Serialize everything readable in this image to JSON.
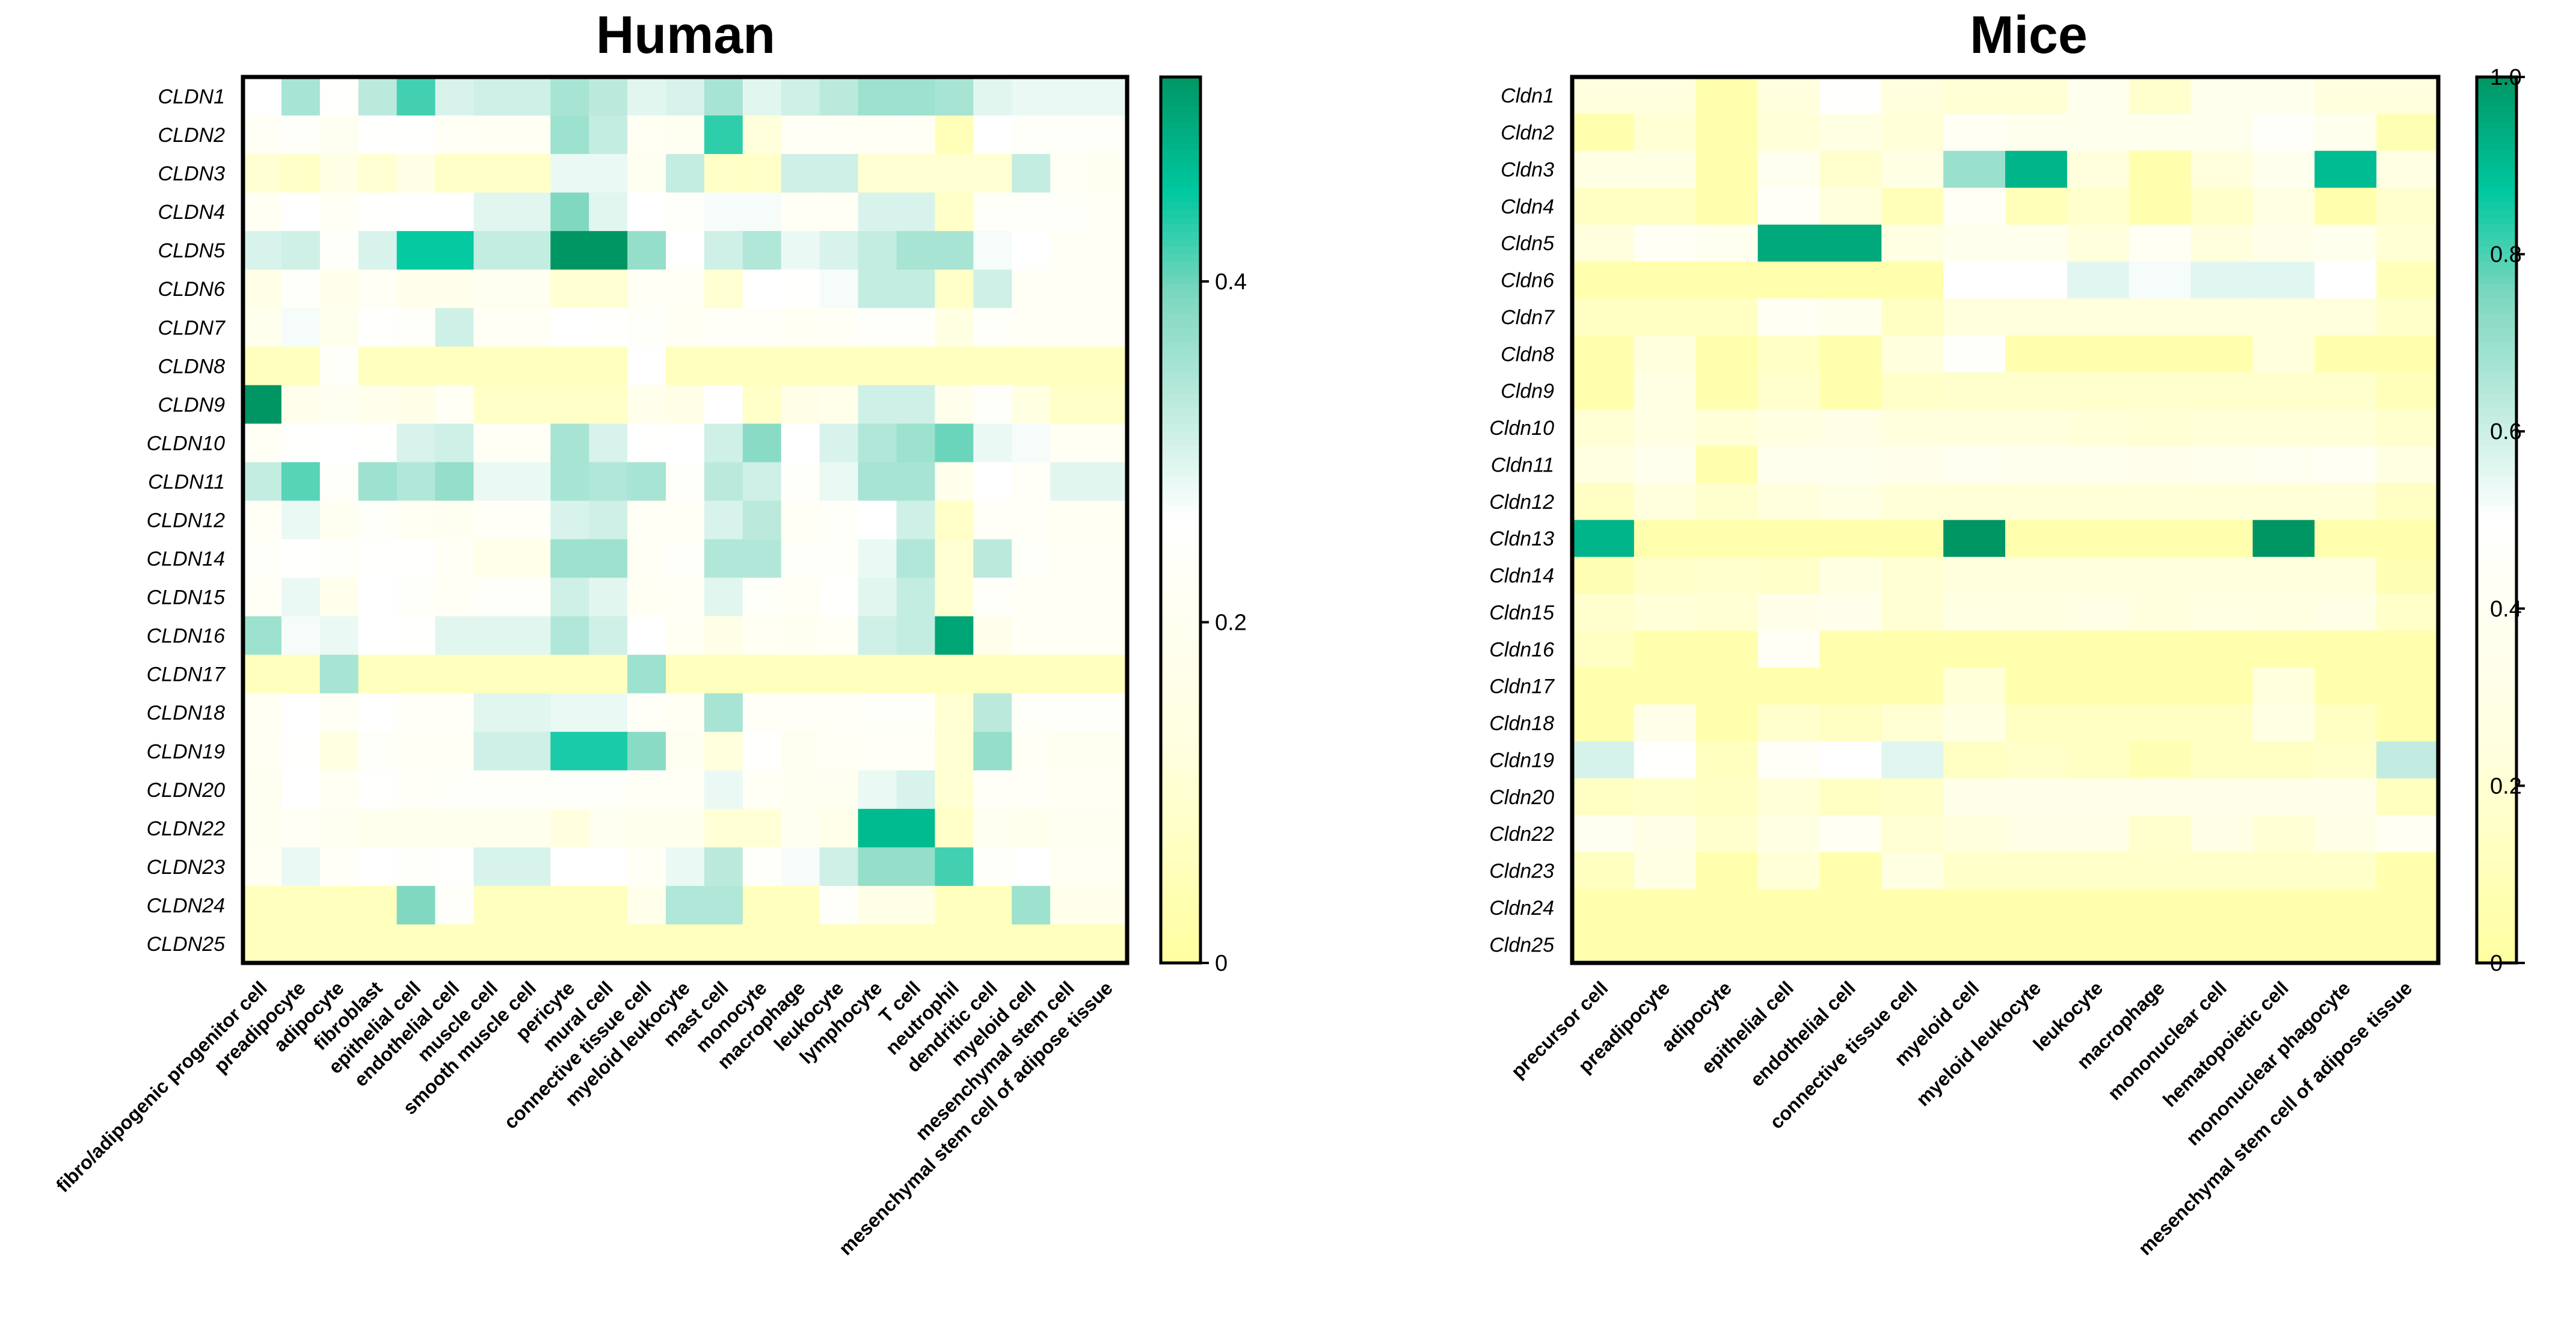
{
  "chart_data": [
    {
      "type": "heatmap",
      "title": "Human",
      "rows": [
        "CLDN1",
        "CLDN2",
        "CLDN3",
        "CLDN4",
        "CLDN5",
        "CLDN6",
        "CLDN7",
        "CLDN8",
        "CLDN9",
        "CLDN10",
        "CLDN11",
        "CLDN12",
        "CLDN14",
        "CLDN15",
        "CLDN16",
        "CLDN17",
        "CLDN18",
        "CLDN19",
        "CLDN20",
        "CLDN22",
        "CLDN23",
        "CLDN24",
        "CLDN25"
      ],
      "columns": [
        "fibro/adipogenic progenitor cell",
        "preadipocyte",
        "adipocyte",
        "fibroblast",
        "epithelial cell",
        "endothelial cell",
        "muscle cell",
        "smooth muscle cell",
        "pericyte",
        "mural cell",
        "connective tissue cell",
        "myeloid leukocyte",
        "mast cell",
        "monocyte",
        "macrophage",
        "leukocyte",
        "lymphocyte",
        "T cell",
        "neutrophil",
        "dendritic cell",
        "myeloid cell",
        "mesenchymal stem cell",
        "mesenchymal stem cell of adipose tissue"
      ],
      "values": [
        [
          0.26,
          0.35,
          0.25,
          0.33,
          0.42,
          0.3,
          0.31,
          0.31,
          0.35,
          0.33,
          0.29,
          0.3,
          0.35,
          0.29,
          0.31,
          0.33,
          0.36,
          0.36,
          0.35,
          0.29,
          0.28,
          0.28,
          0.28
        ],
        [
          0.22,
          0.24,
          0.2,
          0.25,
          0.25,
          0.22,
          0.21,
          0.21,
          0.36,
          0.32,
          0.21,
          0.2,
          0.43,
          0.12,
          0.22,
          0.22,
          0.22,
          0.22,
          0.05,
          0.26,
          0.24,
          0.24,
          0.24
        ],
        [
          0.1,
          0.08,
          0.15,
          0.1,
          0.15,
          0.08,
          0.08,
          0.08,
          0.28,
          0.28,
          0.2,
          0.32,
          0.08,
          0.08,
          0.31,
          0.31,
          0.1,
          0.1,
          0.1,
          0.1,
          0.32,
          0.22,
          0.2
        ],
        [
          0.21,
          0.26,
          0.22,
          0.25,
          0.26,
          0.26,
          0.29,
          0.29,
          0.39,
          0.29,
          0.26,
          0.24,
          0.27,
          0.27,
          0.22,
          0.22,
          0.3,
          0.3,
          0.08,
          0.24,
          0.24,
          0.24,
          0.22
        ],
        [
          0.3,
          0.31,
          0.24,
          0.3,
          0.45,
          0.45,
          0.32,
          0.32,
          0.52,
          0.52,
          0.37,
          0.26,
          0.31,
          0.34,
          0.28,
          0.3,
          0.32,
          0.35,
          0.35,
          0.27,
          0.26,
          0.22,
          0.22
        ],
        [
          0.16,
          0.24,
          0.18,
          0.22,
          0.18,
          0.18,
          0.2,
          0.2,
          0.1,
          0.1,
          0.22,
          0.22,
          0.1,
          0.26,
          0.25,
          0.27,
          0.32,
          0.32,
          0.08,
          0.31,
          0.22,
          0.22,
          0.22
        ],
        [
          0.19,
          0.27,
          0.19,
          0.25,
          0.24,
          0.31,
          0.22,
          0.22,
          0.26,
          0.25,
          0.24,
          0.21,
          0.23,
          0.23,
          0.21,
          0.22,
          0.24,
          0.24,
          0.14,
          0.24,
          0.22,
          0.22,
          0.22
        ],
        [
          0.06,
          0.06,
          0.24,
          0.06,
          0.06,
          0.06,
          0.06,
          0.06,
          0.06,
          0.06,
          0.26,
          0.06,
          0.06,
          0.06,
          0.06,
          0.06,
          0.06,
          0.06,
          0.06,
          0.06,
          0.06,
          0.06,
          0.06
        ],
        [
          0.52,
          0.18,
          0.2,
          0.18,
          0.16,
          0.22,
          0.08,
          0.08,
          0.08,
          0.08,
          0.18,
          0.16,
          0.26,
          0.08,
          0.16,
          0.17,
          0.31,
          0.31,
          0.18,
          0.24,
          0.14,
          0.08,
          0.08
        ],
        [
          0.22,
          0.25,
          0.26,
          0.25,
          0.3,
          0.31,
          0.22,
          0.22,
          0.35,
          0.3,
          0.25,
          0.26,
          0.31,
          0.38,
          0.26,
          0.3,
          0.34,
          0.36,
          0.4,
          0.28,
          0.27,
          0.21,
          0.21
        ],
        [
          0.32,
          0.41,
          0.24,
          0.36,
          0.34,
          0.37,
          0.28,
          0.28,
          0.35,
          0.34,
          0.35,
          0.24,
          0.33,
          0.31,
          0.24,
          0.28,
          0.35,
          0.35,
          0.18,
          0.26,
          0.23,
          0.29,
          0.29
        ],
        [
          0.22,
          0.28,
          0.2,
          0.24,
          0.21,
          0.2,
          0.23,
          0.23,
          0.3,
          0.31,
          0.22,
          0.22,
          0.3,
          0.33,
          0.22,
          0.24,
          0.26,
          0.31,
          0.08,
          0.23,
          0.23,
          0.21,
          0.21
        ],
        [
          0.24,
          0.25,
          0.24,
          0.25,
          0.25,
          0.22,
          0.17,
          0.17,
          0.36,
          0.36,
          0.22,
          0.24,
          0.34,
          0.34,
          0.24,
          0.24,
          0.28,
          0.34,
          0.1,
          0.33,
          0.24,
          0.22,
          0.22
        ],
        [
          0.22,
          0.28,
          0.18,
          0.26,
          0.24,
          0.22,
          0.24,
          0.24,
          0.31,
          0.29,
          0.21,
          0.22,
          0.29,
          0.24,
          0.22,
          0.25,
          0.29,
          0.32,
          0.1,
          0.24,
          0.22,
          0.22,
          0.22
        ],
        [
          0.36,
          0.27,
          0.28,
          0.26,
          0.25,
          0.29,
          0.29,
          0.29,
          0.34,
          0.31,
          0.26,
          0.21,
          0.16,
          0.21,
          0.2,
          0.22,
          0.31,
          0.32,
          0.5,
          0.18,
          0.22,
          0.22,
          0.22
        ],
        [
          0.06,
          0.06,
          0.35,
          0.06,
          0.06,
          0.06,
          0.06,
          0.06,
          0.06,
          0.06,
          0.36,
          0.06,
          0.06,
          0.06,
          0.06,
          0.06,
          0.06,
          0.06,
          0.06,
          0.06,
          0.06,
          0.06,
          0.06
        ],
        [
          0.21,
          0.26,
          0.22,
          0.26,
          0.23,
          0.23,
          0.29,
          0.29,
          0.28,
          0.28,
          0.23,
          0.21,
          0.35,
          0.23,
          0.23,
          0.23,
          0.24,
          0.24,
          0.1,
          0.33,
          0.24,
          0.24,
          0.24
        ],
        [
          0.21,
          0.25,
          0.14,
          0.24,
          0.22,
          0.22,
          0.31,
          0.31,
          0.44,
          0.44,
          0.38,
          0.2,
          0.12,
          0.25,
          0.2,
          0.22,
          0.23,
          0.23,
          0.1,
          0.37,
          0.22,
          0.2,
          0.2
        ],
        [
          0.2,
          0.26,
          0.21,
          0.25,
          0.23,
          0.24,
          0.24,
          0.24,
          0.24,
          0.24,
          0.22,
          0.22,
          0.28,
          0.22,
          0.2,
          0.2,
          0.28,
          0.3,
          0.1,
          0.23,
          0.23,
          0.21,
          0.21
        ],
        [
          0.2,
          0.22,
          0.2,
          0.19,
          0.19,
          0.19,
          0.19,
          0.19,
          0.13,
          0.2,
          0.19,
          0.19,
          0.11,
          0.11,
          0.2,
          0.17,
          0.47,
          0.47,
          0.08,
          0.2,
          0.19,
          0.2,
          0.2
        ],
        [
          0.21,
          0.28,
          0.23,
          0.26,
          0.24,
          0.25,
          0.3,
          0.3,
          0.26,
          0.26,
          0.22,
          0.28,
          0.33,
          0.24,
          0.27,
          0.31,
          0.37,
          0.37,
          0.42,
          0.24,
          0.26,
          0.21,
          0.21
        ],
        [
          0.06,
          0.06,
          0.06,
          0.06,
          0.39,
          0.24,
          0.06,
          0.06,
          0.06,
          0.06,
          0.18,
          0.34,
          0.34,
          0.06,
          0.06,
          0.24,
          0.16,
          0.16,
          0.06,
          0.06,
          0.36,
          0.18,
          0.18
        ],
        [
          0.06,
          0.06,
          0.06,
          0.06,
          0.06,
          0.06,
          0.06,
          0.06,
          0.06,
          0.06,
          0.06,
          0.06,
          0.06,
          0.06,
          0.06,
          0.06,
          0.06,
          0.06,
          0.06,
          0.06,
          0.06,
          0.06,
          0.06
        ]
      ],
      "colorbar": {
        "min": 0,
        "max": 0.52,
        "ticks": [
          0,
          0.2,
          0.4
        ]
      }
    },
    {
      "type": "heatmap",
      "title": "Mice",
      "rows": [
        "Cldn1",
        "Cldn2",
        "Cldn3",
        "Cldn4",
        "Cldn5",
        "Cldn6",
        "Cldn7",
        "Cldn8",
        "Cldn9",
        "Cldn10",
        "Cldn11",
        "Cldn12",
        "Cldn13",
        "Cldn14",
        "Cldn15",
        "Cldn16",
        "Cldn17",
        "Cldn18",
        "Cldn19",
        "Cldn20",
        "Cldn22",
        "Cldn23",
        "Cldn24",
        "Cldn25"
      ],
      "columns": [
        "precursor cell",
        "preadipocyte",
        "adipocyte",
        "epithelial cell",
        "endothelial cell",
        "connective tissue cell",
        "myeloid cell",
        "myeloid leukocyte",
        "leukocyte",
        "macrophage",
        "mononuclear cell",
        "hematopoietic cell",
        "mononuclear phagocyte",
        "mesenchymal stem cell of adipose tissue"
      ],
      "values": [
        [
          0.24,
          0.24,
          0.05,
          0.24,
          0.48,
          0.24,
          0.2,
          0.2,
          0.36,
          0.18,
          0.36,
          0.36,
          0.24,
          0.24
        ],
        [
          0.05,
          0.2,
          0.05,
          0.22,
          0.28,
          0.22,
          0.4,
          0.36,
          0.36,
          0.36,
          0.36,
          0.45,
          0.36,
          0.08
        ],
        [
          0.28,
          0.28,
          0.05,
          0.38,
          0.18,
          0.28,
          0.7,
          0.92,
          0.24,
          0.05,
          0.24,
          0.36,
          0.9,
          0.28
        ],
        [
          0.14,
          0.14,
          0.05,
          0.44,
          0.24,
          0.1,
          0.42,
          0.1,
          0.18,
          0.05,
          0.16,
          0.28,
          0.05,
          0.18
        ],
        [
          0.24,
          0.42,
          0.38,
          0.95,
          0.95,
          0.28,
          0.36,
          0.36,
          0.24,
          0.4,
          0.24,
          0.32,
          0.36,
          0.2
        ],
        [
          0.05,
          0.05,
          0.05,
          0.05,
          0.05,
          0.05,
          0.5,
          0.5,
          0.56,
          0.52,
          0.56,
          0.56,
          0.5,
          0.1
        ],
        [
          0.14,
          0.14,
          0.14,
          0.4,
          0.36,
          0.14,
          0.24,
          0.24,
          0.24,
          0.24,
          0.24,
          0.24,
          0.24,
          0.16
        ],
        [
          0.05,
          0.24,
          0.05,
          0.15,
          0.05,
          0.24,
          0.46,
          0.05,
          0.05,
          0.05,
          0.05,
          0.24,
          0.05,
          0.05
        ],
        [
          0.05,
          0.28,
          0.05,
          0.18,
          0.05,
          0.16,
          0.18,
          0.18,
          0.18,
          0.18,
          0.18,
          0.18,
          0.18,
          0.1
        ],
        [
          0.2,
          0.28,
          0.22,
          0.26,
          0.3,
          0.24,
          0.24,
          0.24,
          0.22,
          0.2,
          0.22,
          0.22,
          0.22,
          0.18
        ],
        [
          0.26,
          0.36,
          0.05,
          0.36,
          0.36,
          0.34,
          0.38,
          0.36,
          0.36,
          0.34,
          0.36,
          0.38,
          0.4,
          0.26
        ],
        [
          0.14,
          0.24,
          0.18,
          0.24,
          0.28,
          0.22,
          0.22,
          0.22,
          0.22,
          0.22,
          0.22,
          0.22,
          0.22,
          0.14
        ],
        [
          0.92,
          0.05,
          0.05,
          0.05,
          0.05,
          0.05,
          1.0,
          0.05,
          0.05,
          0.05,
          0.05,
          1.0,
          0.05,
          0.05
        ],
        [
          0.08,
          0.16,
          0.18,
          0.16,
          0.26,
          0.2,
          0.24,
          0.24,
          0.24,
          0.24,
          0.24,
          0.24,
          0.24,
          0.08
        ],
        [
          0.18,
          0.22,
          0.2,
          0.32,
          0.34,
          0.2,
          0.28,
          0.26,
          0.3,
          0.24,
          0.28,
          0.26,
          0.3,
          0.16
        ],
        [
          0.14,
          0.05,
          0.05,
          0.42,
          0.05,
          0.05,
          0.05,
          0.05,
          0.05,
          0.05,
          0.05,
          0.05,
          0.05,
          0.05
        ],
        [
          0.05,
          0.05,
          0.05,
          0.05,
          0.05,
          0.05,
          0.22,
          0.05,
          0.05,
          0.05,
          0.05,
          0.24,
          0.05,
          0.05
        ],
        [
          0.05,
          0.32,
          0.05,
          0.18,
          0.14,
          0.2,
          0.28,
          0.14,
          0.14,
          0.14,
          0.14,
          0.28,
          0.14,
          0.05
        ],
        [
          0.58,
          0.48,
          0.12,
          0.44,
          0.5,
          0.56,
          0.14,
          0.16,
          0.14,
          0.08,
          0.14,
          0.14,
          0.16,
          0.62
        ],
        [
          0.14,
          0.16,
          0.14,
          0.22,
          0.14,
          0.16,
          0.32,
          0.32,
          0.32,
          0.32,
          0.32,
          0.32,
          0.32,
          0.12
        ],
        [
          0.38,
          0.3,
          0.18,
          0.28,
          0.4,
          0.2,
          0.24,
          0.3,
          0.3,
          0.18,
          0.3,
          0.2,
          0.3,
          0.4
        ],
        [
          0.12,
          0.28,
          0.05,
          0.22,
          0.05,
          0.26,
          0.16,
          0.16,
          0.16,
          0.16,
          0.16,
          0.16,
          0.16,
          0.05
        ],
        [
          0.05,
          0.05,
          0.05,
          0.05,
          0.05,
          0.05,
          0.05,
          0.05,
          0.05,
          0.05,
          0.05,
          0.05,
          0.05,
          0.05
        ],
        [
          0.05,
          0.05,
          0.05,
          0.05,
          0.05,
          0.05,
          0.05,
          0.05,
          0.05,
          0.05,
          0.05,
          0.05,
          0.05,
          0.05
        ]
      ],
      "colorbar": {
        "min": 0,
        "max": 1.0,
        "ticks": [
          0,
          0.2,
          0.4,
          0.6,
          0.8,
          1.0
        ]
      }
    }
  ]
}
